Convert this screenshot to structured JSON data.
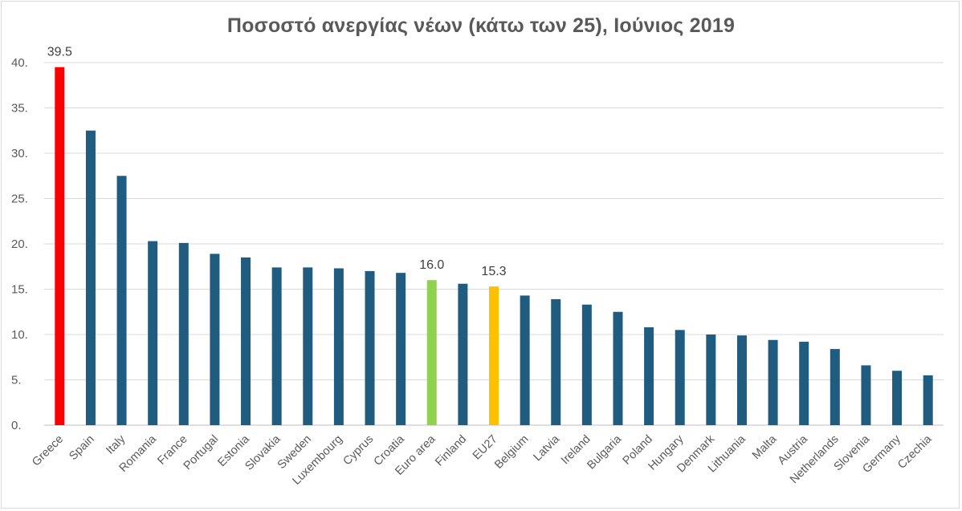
{
  "chart_data": {
    "type": "bar",
    "title": "Ποσοστό ανεργίας νέων (κάτω των 25), Ιούνιος 2019",
    "xlabel": "",
    "ylabel": "",
    "ylim": [
      0,
      40
    ],
    "y_ticks": [
      "0.",
      "5.",
      "10.",
      "15.",
      "20.",
      "25.",
      "30.",
      "35.",
      "40."
    ],
    "y_tick_values": [
      0,
      5,
      10,
      15,
      20,
      25,
      30,
      35,
      40
    ],
    "grid": true,
    "categories": [
      "Greece",
      "Spain",
      "Italy",
      "Romania",
      "France",
      "Portugal",
      "Estonia",
      "Slovakia",
      "Sweden",
      "Luxembourg",
      "Cyprus",
      "Croatia",
      "Euro area",
      "Finland",
      "EU27",
      "Belgium",
      "Latvia",
      "Ireland",
      "Bulgaria",
      "Poland",
      "Hungary",
      "Denmark",
      "Lithuania",
      "Malta",
      "Austria",
      "Netherlands",
      "Slovenia",
      "Germany",
      "Czechia"
    ],
    "values": [
      39.5,
      32.5,
      27.5,
      20.3,
      20.1,
      18.9,
      18.5,
      17.4,
      17.4,
      17.3,
      17.0,
      16.8,
      16.0,
      15.6,
      15.3,
      14.3,
      13.9,
      13.3,
      12.5,
      10.8,
      10.5,
      10.0,
      9.9,
      9.4,
      9.2,
      8.4,
      6.6,
      6.0,
      5.5
    ],
    "colors": {
      "default": "#1f5c7f",
      "Greece": "#ff0000",
      "Euro area": "#92d050",
      "EU27": "#ffc000"
    },
    "data_labels": [
      {
        "category": "Greece",
        "text": "39.5"
      },
      {
        "category": "Euro area",
        "text": "16.0"
      },
      {
        "category": "EU27",
        "text": "15.3"
      }
    ]
  }
}
